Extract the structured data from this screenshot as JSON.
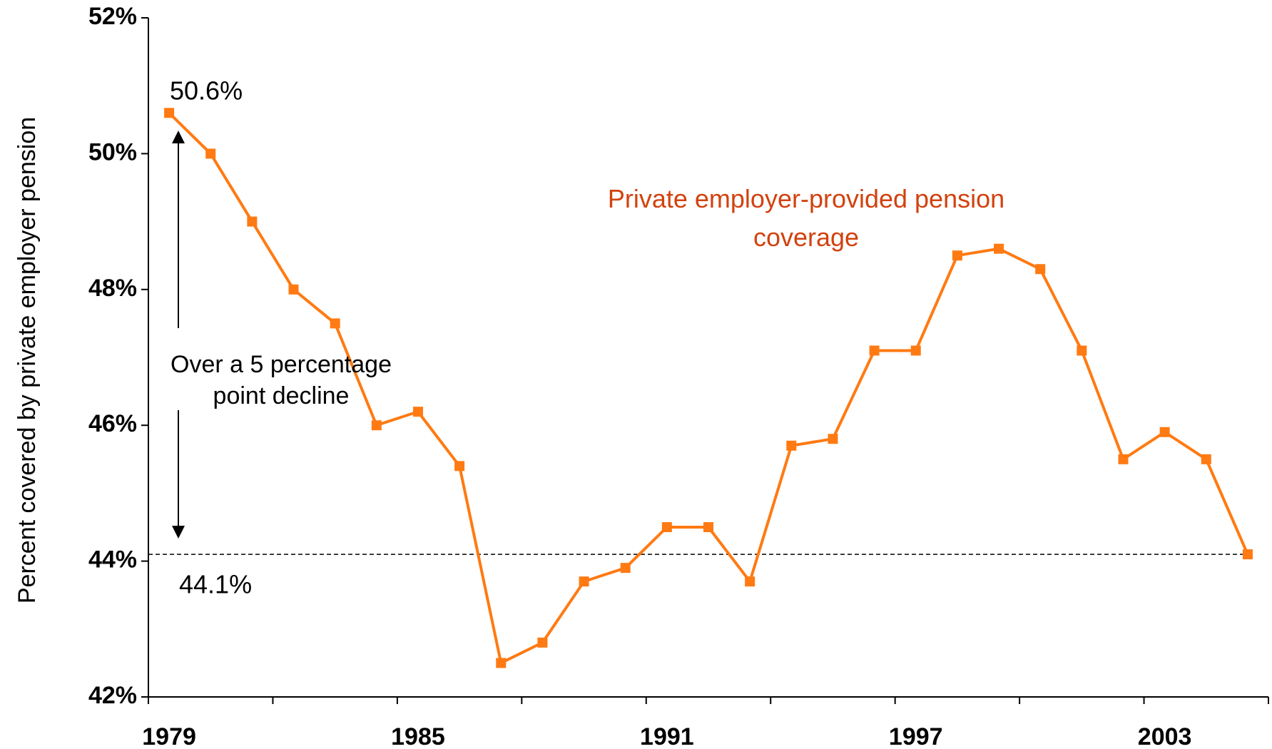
{
  "chart_data": {
    "type": "line",
    "y_label": "Percent covered by private employer pension",
    "categories": [
      "1979",
      null,
      null,
      null,
      null,
      null,
      "1985",
      null,
      null,
      null,
      null,
      null,
      "1991",
      null,
      null,
      null,
      null,
      null,
      "1997",
      null,
      null,
      null,
      null,
      null,
      "2003",
      null,
      null
    ],
    "series": [
      {
        "name": "Private employer-provided pension coverage",
        "color": "#ff7a12",
        "values": [
          50.6,
          50.0,
          49.0,
          48.0,
          47.5,
          46.0,
          46.2,
          45.4,
          42.5,
          42.8,
          43.7,
          43.9,
          44.5,
          44.5,
          43.7,
          45.7,
          45.8,
          47.1,
          47.1,
          48.5,
          48.6,
          48.3,
          47.1,
          45.5,
          45.9,
          45.5,
          44.1
        ]
      }
    ],
    "ylim": [
      42,
      52
    ],
    "yticks": [
      {
        "value": 42,
        "label": "42%"
      },
      {
        "value": 44,
        "label": "44%"
      },
      {
        "value": 46,
        "label": "46%"
      },
      {
        "value": 48,
        "label": "48%"
      },
      {
        "value": 50,
        "label": "50%"
      },
      {
        "value": 52,
        "label": "52%"
      }
    ],
    "reference_line": 44.1,
    "annotations": [
      "50.6%",
      "44.1%",
      "Over a 5 percentage point decline"
    ],
    "series_label_color": "#d2420f"
  }
}
